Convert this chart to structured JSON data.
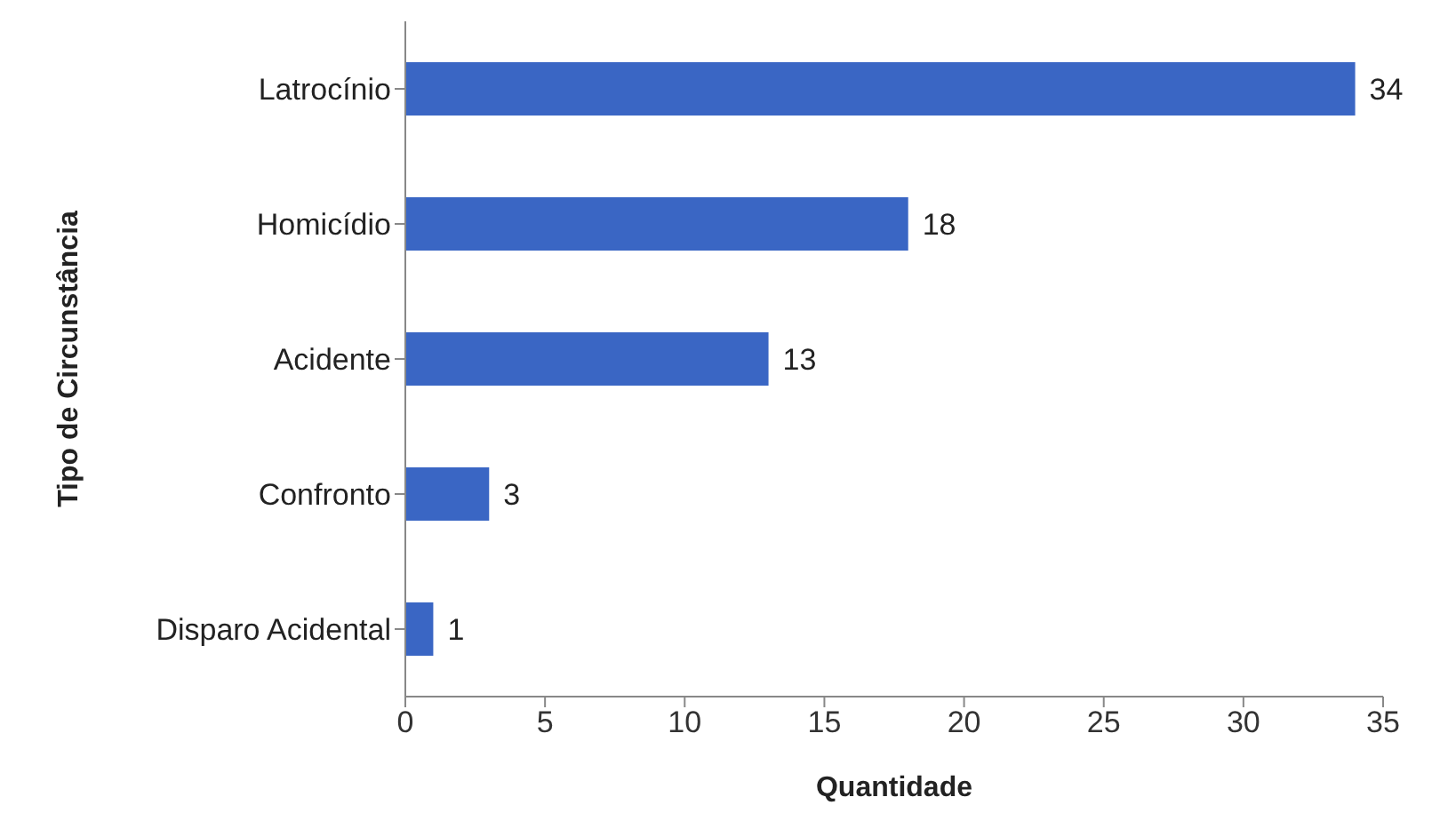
{
  "chart_data": {
    "type": "bar",
    "orientation": "horizontal",
    "categories": [
      "Latrocínio",
      "Homicídio",
      "Acidente",
      "Confronto",
      "Disparo Acidental"
    ],
    "values": [
      34,
      18,
      13,
      3,
      1
    ],
    "color": "#3a66c4",
    "xlim": [
      0,
      35
    ],
    "xticks": [
      0,
      5,
      10,
      15,
      20,
      25,
      30,
      35
    ],
    "xlabel": "Quantidade",
    "ylabel": "Tipo de Circunstância",
    "data_labels": true,
    "grid": false,
    "legend": false
  }
}
